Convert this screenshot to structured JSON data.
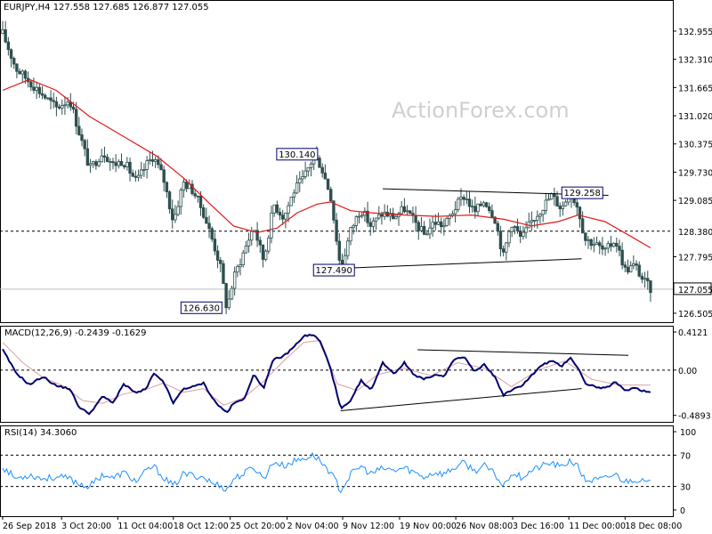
{
  "watermark": "ActionForex.com",
  "colors": {
    "candle": "#2f4f4f",
    "ma": "#e0191a",
    "macd": "#00006e",
    "signal": "#d9a0a0",
    "rsi": "#1e90ff",
    "trendline": "#000000",
    "grid_dotted": "#000000"
  },
  "chart_data": [
    {
      "type": "candlestick",
      "name": "price",
      "header": "EURJPY,H4  127.558 127.685 126.877 127.055",
      "symbol": "EURJPY,H4",
      "ohlc_last": {
        "open": 127.558,
        "high": 127.685,
        "low": 126.877,
        "close": 127.055
      },
      "ylim": [
        126.3,
        133.3
      ],
      "y_ticks": [
        "132.955",
        "132.310",
        "131.665",
        "131.020",
        "130.375",
        "129.730",
        "129.085",
        "128.380",
        "127.795",
        "127.055",
        "126.505"
      ],
      "price_labels": {
        "level_line": "128.380",
        "last_price": "127.055"
      },
      "annotations": [
        {
          "text": "130.140"
        },
        {
          "text": "129.258"
        },
        {
          "text": "127.490"
        },
        {
          "text": "126.630"
        }
      ],
      "trendlines": [
        {
          "x": [
            0.568,
            0.905
          ],
          "y": [
            129.35,
            129.2
          ]
        },
        {
          "x": [
            0.505,
            0.865
          ],
          "y": [
            127.53,
            127.75
          ]
        }
      ],
      "path": [
        [
          0.0,
          132.9
        ],
        [
          0.02,
          132.1
        ],
        [
          0.04,
          131.8
        ],
        [
          0.06,
          131.5
        ],
        [
          0.08,
          131.2
        ],
        [
          0.1,
          131.4
        ],
        [
          0.115,
          130.6
        ],
        [
          0.13,
          129.8
        ],
        [
          0.15,
          130.2
        ],
        [
          0.165,
          129.9
        ],
        [
          0.18,
          130.0
        ],
        [
          0.2,
          129.5
        ],
        [
          0.215,
          129.9
        ],
        [
          0.225,
          130.1
        ],
        [
          0.24,
          129.6
        ],
        [
          0.255,
          128.6
        ],
        [
          0.27,
          129.5
        ],
        [
          0.285,
          129.3
        ],
        [
          0.3,
          128.8
        ],
        [
          0.315,
          128.1
        ],
        [
          0.325,
          127.6
        ],
        [
          0.335,
          126.6
        ],
        [
          0.345,
          127.3
        ],
        [
          0.36,
          127.9
        ],
        [
          0.375,
          128.5
        ],
        [
          0.39,
          127.7
        ],
        [
          0.405,
          129.0
        ],
        [
          0.42,
          128.7
        ],
        [
          0.435,
          129.3
        ],
        [
          0.45,
          129.6
        ],
        [
          0.465,
          130.1
        ],
        [
          0.475,
          129.9
        ],
        [
          0.49,
          129.2
        ],
        [
          0.505,
          127.5
        ],
        [
          0.52,
          128.4
        ],
        [
          0.535,
          128.9
        ],
        [
          0.55,
          128.5
        ],
        [
          0.568,
          128.8
        ],
        [
          0.585,
          128.7
        ],
        [
          0.6,
          128.9
        ],
        [
          0.615,
          128.6
        ],
        [
          0.63,
          128.3
        ],
        [
          0.645,
          128.6
        ],
        [
          0.66,
          128.5
        ],
        [
          0.675,
          128.9
        ],
        [
          0.69,
          129.2
        ],
        [
          0.705,
          128.8
        ],
        [
          0.72,
          129.1
        ],
        [
          0.735,
          128.7
        ],
        [
          0.748,
          127.8
        ],
        [
          0.76,
          128.6
        ],
        [
          0.775,
          128.2
        ],
        [
          0.79,
          128.6
        ],
        [
          0.805,
          128.9
        ],
        [
          0.82,
          129.2
        ],
        [
          0.835,
          128.9
        ],
        [
          0.848,
          129.3
        ],
        [
          0.86,
          128.9
        ],
        [
          0.87,
          128.2
        ],
        [
          0.885,
          128.1
        ],
        [
          0.9,
          127.9
        ],
        [
          0.915,
          128.2
        ],
        [
          0.93,
          127.5
        ],
        [
          0.945,
          127.6
        ],
        [
          0.955,
          127.3
        ],
        [
          0.968,
          127.06
        ]
      ],
      "ma_path": [
        [
          0.0,
          131.6
        ],
        [
          0.04,
          131.85
        ],
        [
          0.08,
          131.6
        ],
        [
          0.13,
          131.0
        ],
        [
          0.18,
          130.55
        ],
        [
          0.23,
          130.1
        ],
        [
          0.27,
          129.6
        ],
        [
          0.31,
          129.0
        ],
        [
          0.345,
          128.5
        ],
        [
          0.38,
          128.35
        ],
        [
          0.41,
          128.45
        ],
        [
          0.44,
          128.8
        ],
        [
          0.47,
          129.0
        ],
        [
          0.49,
          129.05
        ],
        [
          0.52,
          128.85
        ],
        [
          0.55,
          128.8
        ],
        [
          0.6,
          128.75
        ],
        [
          0.65,
          128.72
        ],
        [
          0.7,
          128.75
        ],
        [
          0.75,
          128.65
        ],
        [
          0.79,
          128.5
        ],
        [
          0.83,
          128.6
        ],
        [
          0.86,
          128.75
        ],
        [
          0.9,
          128.6
        ],
        [
          0.94,
          128.25
        ],
        [
          0.968,
          128.0
        ]
      ]
    },
    {
      "type": "line",
      "name": "macd",
      "header": "MACD(12,26,9) -0.2439 -0.1629",
      "ylim": [
        -0.56,
        0.48
      ],
      "y_ticks": [
        "0.4121",
        "0.00",
        "-0.4893"
      ],
      "zero_line": 0.0,
      "series": [
        {
          "name": "MACD(12,26,9)",
          "points": [
            [
              0.0,
              0.22
            ],
            [
              0.02,
              -0.03
            ],
            [
              0.04,
              -0.16
            ],
            [
              0.06,
              -0.07
            ],
            [
              0.08,
              -0.17
            ],
            [
              0.1,
              -0.2
            ],
            [
              0.115,
              -0.41
            ],
            [
              0.13,
              -0.47
            ],
            [
              0.15,
              -0.28
            ],
            [
              0.165,
              -0.36
            ],
            [
              0.18,
              -0.15
            ],
            [
              0.2,
              -0.25
            ],
            [
              0.215,
              -0.2
            ],
            [
              0.225,
              -0.04
            ],
            [
              0.24,
              -0.12
            ],
            [
              0.255,
              -0.36
            ],
            [
              0.27,
              -0.2
            ],
            [
              0.285,
              -0.18
            ],
            [
              0.3,
              -0.14
            ],
            [
              0.315,
              -0.32
            ],
            [
              0.325,
              -0.4
            ],
            [
              0.335,
              -0.46
            ],
            [
              0.345,
              -0.36
            ],
            [
              0.36,
              -0.32
            ],
            [
              0.375,
              -0.05
            ],
            [
              0.39,
              -0.19
            ],
            [
              0.405,
              0.12
            ],
            [
              0.42,
              0.15
            ],
            [
              0.435,
              0.25
            ],
            [
              0.45,
              0.37
            ],
            [
              0.465,
              0.38
            ],
            [
              0.475,
              0.3
            ],
            [
              0.49,
              0.02
            ],
            [
              0.505,
              -0.42
            ],
            [
              0.52,
              -0.34
            ],
            [
              0.535,
              -0.11
            ],
            [
              0.55,
              -0.22
            ],
            [
              0.568,
              0.08
            ],
            [
              0.585,
              -0.04
            ],
            [
              0.6,
              0.08
            ],
            [
              0.615,
              -0.05
            ],
            [
              0.63,
              -0.1
            ],
            [
              0.645,
              -0.05
            ],
            [
              0.66,
              -0.07
            ],
            [
              0.675,
              0.12
            ],
            [
              0.69,
              0.14
            ],
            [
              0.705,
              -0.02
            ],
            [
              0.72,
              0.06
            ],
            [
              0.735,
              -0.07
            ],
            [
              0.748,
              -0.27
            ],
            [
              0.76,
              -0.22
            ],
            [
              0.775,
              -0.17
            ],
            [
              0.79,
              -0.06
            ],
            [
              0.805,
              0.05
            ],
            [
              0.82,
              0.1
            ],
            [
              0.835,
              0.04
            ],
            [
              0.848,
              0.14
            ],
            [
              0.86,
              0.02
            ],
            [
              0.87,
              -0.14
            ],
            [
              0.885,
              -0.18
            ],
            [
              0.9,
              -0.2
            ],
            [
              0.915,
              -0.13
            ],
            [
              0.93,
              -0.22
            ],
            [
              0.945,
              -0.19
            ],
            [
              0.955,
              -0.22
            ],
            [
              0.968,
              -0.24
            ]
          ]
        },
        {
          "name": "signal",
          "points": [
            [
              0.0,
              0.3
            ],
            [
              0.03,
              0.08
            ],
            [
              0.06,
              -0.08
            ],
            [
              0.09,
              -0.17
            ],
            [
              0.12,
              -0.33
            ],
            [
              0.15,
              -0.36
            ],
            [
              0.18,
              -0.26
            ],
            [
              0.21,
              -0.22
            ],
            [
              0.24,
              -0.14
            ],
            [
              0.27,
              -0.24
            ],
            [
              0.3,
              -0.2
            ],
            [
              0.33,
              -0.38
            ],
            [
              0.36,
              -0.3
            ],
            [
              0.39,
              -0.12
            ],
            [
              0.42,
              0.1
            ],
            [
              0.45,
              0.3
            ],
            [
              0.475,
              0.32
            ],
            [
              0.5,
              -0.15
            ],
            [
              0.53,
              -0.22
            ],
            [
              0.56,
              -0.05
            ],
            [
              0.6,
              0.02
            ],
            [
              0.64,
              -0.06
            ],
            [
              0.68,
              0.08
            ],
            [
              0.72,
              0.02
            ],
            [
              0.76,
              -0.18
            ],
            [
              0.8,
              0.0
            ],
            [
              0.84,
              0.1
            ],
            [
              0.88,
              -0.1
            ],
            [
              0.92,
              -0.16
            ],
            [
              0.968,
              -0.163
            ]
          ]
        }
      ],
      "trendlines": [
        {
          "x": [
            0.62,
            0.935
          ],
          "y": [
            0.22,
            0.16
          ]
        },
        {
          "x": [
            0.505,
            0.865
          ],
          "y": [
            -0.44,
            -0.2
          ]
        }
      ]
    },
    {
      "type": "line",
      "name": "rsi",
      "header": "RSI(14) 34.3060",
      "ylim": [
        0,
        100
      ],
      "y_ticks": [
        "100",
        "70",
        "30",
        "0"
      ],
      "levels": [
        70,
        30
      ],
      "series": [
        {
          "name": "RSI(14)",
          "points": [
            [
              0.0,
              55
            ],
            [
              0.02,
              40
            ],
            [
              0.04,
              45
            ],
            [
              0.06,
              40
            ],
            [
              0.08,
              42
            ],
            [
              0.1,
              40
            ],
            [
              0.115,
              33
            ],
            [
              0.13,
              30
            ],
            [
              0.15,
              46
            ],
            [
              0.165,
              40
            ],
            [
              0.18,
              48
            ],
            [
              0.2,
              36
            ],
            [
              0.215,
              50
            ],
            [
              0.225,
              56
            ],
            [
              0.24,
              42
            ],
            [
              0.255,
              30
            ],
            [
              0.27,
              46
            ],
            [
              0.285,
              44
            ],
            [
              0.3,
              42
            ],
            [
              0.315,
              33
            ],
            [
              0.325,
              32
            ],
            [
              0.335,
              25
            ],
            [
              0.345,
              40
            ],
            [
              0.36,
              46
            ],
            [
              0.375,
              55
            ],
            [
              0.39,
              40
            ],
            [
              0.405,
              62
            ],
            [
              0.42,
              56
            ],
            [
              0.435,
              62
            ],
            [
              0.45,
              66
            ],
            [
              0.465,
              70
            ],
            [
              0.475,
              62
            ],
            [
              0.49,
              48
            ],
            [
              0.505,
              25
            ],
            [
              0.52,
              45
            ],
            [
              0.535,
              56
            ],
            [
              0.55,
              46
            ],
            [
              0.568,
              53
            ],
            [
              0.585,
              50
            ],
            [
              0.6,
              54
            ],
            [
              0.615,
              48
            ],
            [
              0.63,
              42
            ],
            [
              0.645,
              48
            ],
            [
              0.66,
              46
            ],
            [
              0.675,
              54
            ],
            [
              0.69,
              60
            ],
            [
              0.705,
              50
            ],
            [
              0.72,
              56
            ],
            [
              0.735,
              46
            ],
            [
              0.748,
              30
            ],
            [
              0.76,
              48
            ],
            [
              0.775,
              42
            ],
            [
              0.79,
              50
            ],
            [
              0.805,
              56
            ],
            [
              0.82,
              60
            ],
            [
              0.835,
              54
            ],
            [
              0.848,
              64
            ],
            [
              0.86,
              54
            ],
            [
              0.87,
              38
            ],
            [
              0.885,
              38
            ],
            [
              0.9,
              40
            ],
            [
              0.915,
              46
            ],
            [
              0.93,
              36
            ],
            [
              0.945,
              40
            ],
            [
              0.955,
              36
            ],
            [
              0.968,
              34.3
            ]
          ]
        }
      ]
    }
  ],
  "x_axis": {
    "labels": [
      "26 Sep 2018",
      "3 Oct 20:00",
      "11 Oct 04:00",
      "18 Oct 12:00",
      "25 Oct 20:00",
      "2 Nov 04:00",
      "9 Nov 12:00",
      "19 Nov 00:00",
      "26 Nov 08:00",
      "3 Dec 16:00",
      "11 Dec 00:00",
      "18 Dec 08:00"
    ]
  }
}
